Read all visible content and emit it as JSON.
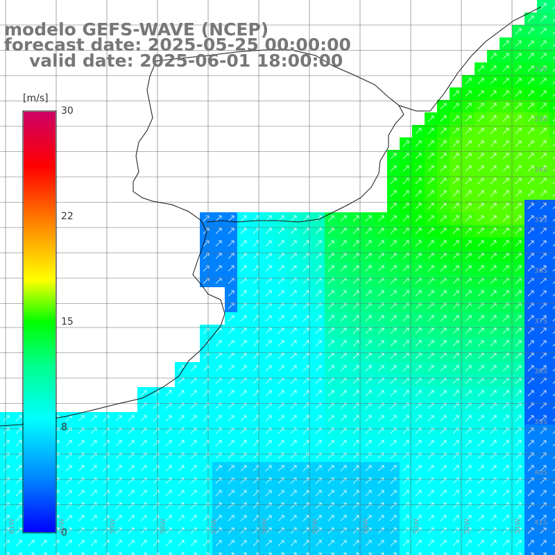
{
  "title": {
    "line1": "modelo GEFS-WAVE (NCEP)",
    "line2": "forecast date: 2025-05-25 00:00:00",
    "line3": "valid date: 2025-06-01 18:00:00"
  },
  "colorbar": {
    "unit": "[m/s]",
    "ticks": [
      "30",
      "22",
      "15",
      "8",
      "0"
    ],
    "tick_values": [
      30,
      22,
      15,
      8,
      0
    ],
    "range": [
      0,
      30
    ],
    "colors": [
      "#0000ff",
      "#00aaff",
      "#00ffff",
      "#00ff00",
      "#ffff00",
      "#ff8800",
      "#ff0000",
      "#cc0066"
    ]
  },
  "lat_labels": [
    "32S",
    "33S",
    "34S",
    "35S",
    "36S",
    "37S",
    "38S",
    "39S",
    "40S",
    "41S"
  ],
  "lon_labels": [
    "61W",
    "60W",
    "59W",
    "58W",
    "57W",
    "56W",
    "55W",
    "54W",
    "53W",
    "52W",
    "51W"
  ],
  "chart_data": {
    "type": "heatmap",
    "variable": "wind speed with direction arrows",
    "unit": "m/s",
    "lon_range": [
      -61.2,
      -50.2
    ],
    "lat_range": [
      -41.3,
      -30.6
    ],
    "wind_direction": "mostly towards north-east"
  }
}
